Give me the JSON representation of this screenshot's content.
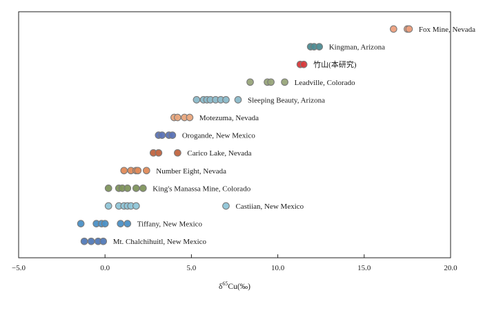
{
  "chart_data": {
    "type": "scatter",
    "xlabel": "δ65Cu(‰)",
    "xlim": [
      -5.0,
      20.0
    ],
    "x_ticks": [
      "−5.0",
      "0.0",
      "5.0",
      "10.0",
      "15.0",
      "20.0"
    ],
    "grid": false,
    "legend": "none",
    "series": [
      {
        "label": "Fox Mine, Nevada",
        "color": "#ec9f7d",
        "x": [
          16.7,
          17.5,
          17.6
        ]
      },
      {
        "label": "Kingman, Arizona",
        "color": "#4d8c94",
        "x": [
          11.9,
          12.1,
          12.4
        ]
      },
      {
        "label": "竹山(本研究)",
        "color": "#d8383a",
        "x": [
          11.3,
          11.5
        ]
      },
      {
        "label": "Leadville, Colorado",
        "color": "#98a57a",
        "x": [
          8.4,
          9.4,
          9.6,
          10.4
        ]
      },
      {
        "label": "Sleeping Beauty, Arizona",
        "color": "#8ab9c9",
        "x": [
          5.3,
          5.7,
          5.9,
          6.1,
          6.4,
          6.7,
          7.0,
          7.7
        ]
      },
      {
        "label": "Motezuma, Nevada",
        "color": "#e9a67d",
        "x": [
          4.0,
          4.2,
          4.6,
          4.9
        ]
      },
      {
        "label": "Orogande, New Mexico",
        "color": "#5b73b6",
        "x": [
          3.1,
          3.3,
          3.7,
          3.9
        ]
      },
      {
        "label": "Carico Lake, Nevada",
        "color": "#c1643f",
        "x": [
          2.8,
          3.1,
          4.2
        ]
      },
      {
        "label": "Number Eight, Nevada",
        "color": "#e08a58",
        "x": [
          1.1,
          1.5,
          1.8,
          1.9,
          2.4
        ]
      },
      {
        "label": "King's Manassa Mine, Colorado",
        "color": "#7f955c",
        "x": [
          0.2,
          0.8,
          1.0,
          1.3,
          1.8,
          2.2
        ]
      },
      {
        "label": "Castiian, New Mexico",
        "color": "#8fc5d7",
        "x": [
          0.2,
          0.8,
          1.1,
          1.3,
          1.5,
          1.8,
          7.0
        ]
      },
      {
        "label": "Tiffany, New Mexico",
        "color": "#4b90c6",
        "x": [
          -1.4,
          -0.5,
          -0.2,
          0.0,
          0.9,
          1.3
        ]
      },
      {
        "label": "Mt. Chalchihuitl, New Mexico",
        "color": "#527ab8",
        "x": [
          -1.2,
          -0.8,
          -0.4,
          -0.1
        ]
      }
    ]
  }
}
